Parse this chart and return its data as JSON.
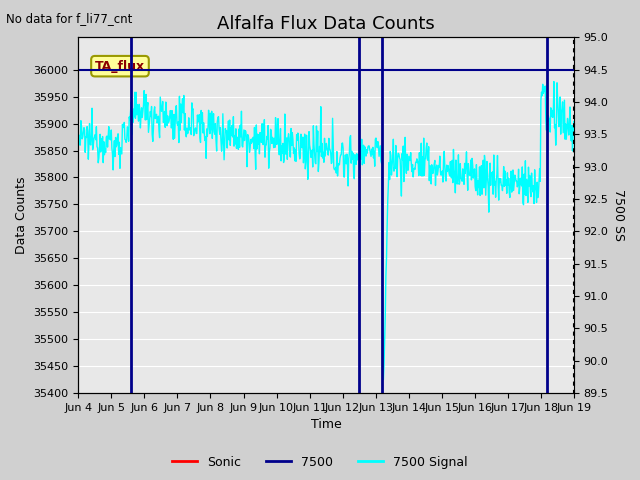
{
  "title": "Alfalfa Flux Data Counts",
  "top_left_text": "No data for f_li77_cnt",
  "annotation_text": "TA_flux",
  "xlabel": "Time",
  "ylabel_left": "Data Counts",
  "ylabel_right": "7500 SS",
  "ylim_left": [
    35400,
    36060
  ],
  "ylim_right": [
    89.5,
    95.0
  ],
  "yticks_left": [
    35400,
    35450,
    35500,
    35550,
    35600,
    35650,
    35700,
    35750,
    35800,
    35850,
    35900,
    35950,
    36000
  ],
  "yticks_right": [
    89.5,
    90.0,
    90.5,
    91.0,
    91.5,
    92.0,
    92.5,
    93.0,
    93.5,
    94.0,
    94.5,
    95.0
  ],
  "xlim": [
    0,
    15
  ],
  "xtick_positions": [
    0,
    1,
    2,
    3,
    4,
    5,
    6,
    7,
    8,
    9,
    10,
    11,
    12,
    13,
    14,
    15
  ],
  "xtick_labels": [
    "Jun 4",
    "Jun 5",
    "Jun 6",
    "Jun 7",
    "Jun 8",
    "Jun 9",
    "Jun 10",
    "Jun 11",
    "Jun 12",
    "Jun 13",
    "Jun 14",
    "Jun 15",
    "Jun 16",
    "Jun 17",
    "Jun 18",
    "Jun 19"
  ],
  "background_color": "#d0d0d0",
  "plot_bg_color": "#e8e8e8",
  "signal_color": "#00ffff",
  "sonic_color": "#ff0000",
  "line7500_color": "#00008b",
  "vlines_7500": [
    1.6,
    8.5,
    9.2,
    14.2
  ],
  "title_fontsize": 13,
  "label_fontsize": 9,
  "tick_fontsize": 8,
  "legend_fontsize": 9
}
